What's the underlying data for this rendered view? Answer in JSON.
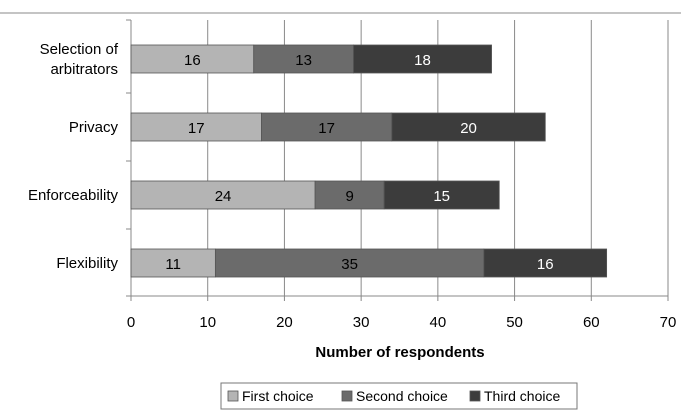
{
  "chart_data": {
    "type": "bar",
    "orientation": "horizontal",
    "stacked": true,
    "categories": [
      "Selection of arbitrators",
      "Privacy",
      "Enforceability",
      "Flexibility"
    ],
    "category_lines": [
      [
        "Selection of",
        "arbitrators"
      ],
      [
        "Privacy"
      ],
      [
        "Enforceability"
      ],
      [
        "Flexibility"
      ]
    ],
    "series": [
      {
        "name": "First choice",
        "values": [
          16,
          17,
          24,
          11
        ],
        "color": "#b4b4b4",
        "label_color": "#000000"
      },
      {
        "name": "Second choice",
        "values": [
          13,
          17,
          9,
          35
        ],
        "color": "#6b6b6b",
        "label_color": "#000000"
      },
      {
        "name": "Third choice",
        "values": [
          18,
          20,
          15,
          16
        ],
        "color": "#3c3c3c",
        "label_color": "#ffffff"
      }
    ],
    "xlabel": "Number of respondents",
    "ylabel": "",
    "title": "",
    "xlim": [
      0,
      70
    ],
    "xticks": [
      0,
      10,
      20,
      30,
      40,
      50,
      60,
      70
    ],
    "grid": "vertical",
    "legend_position": "bottom"
  }
}
